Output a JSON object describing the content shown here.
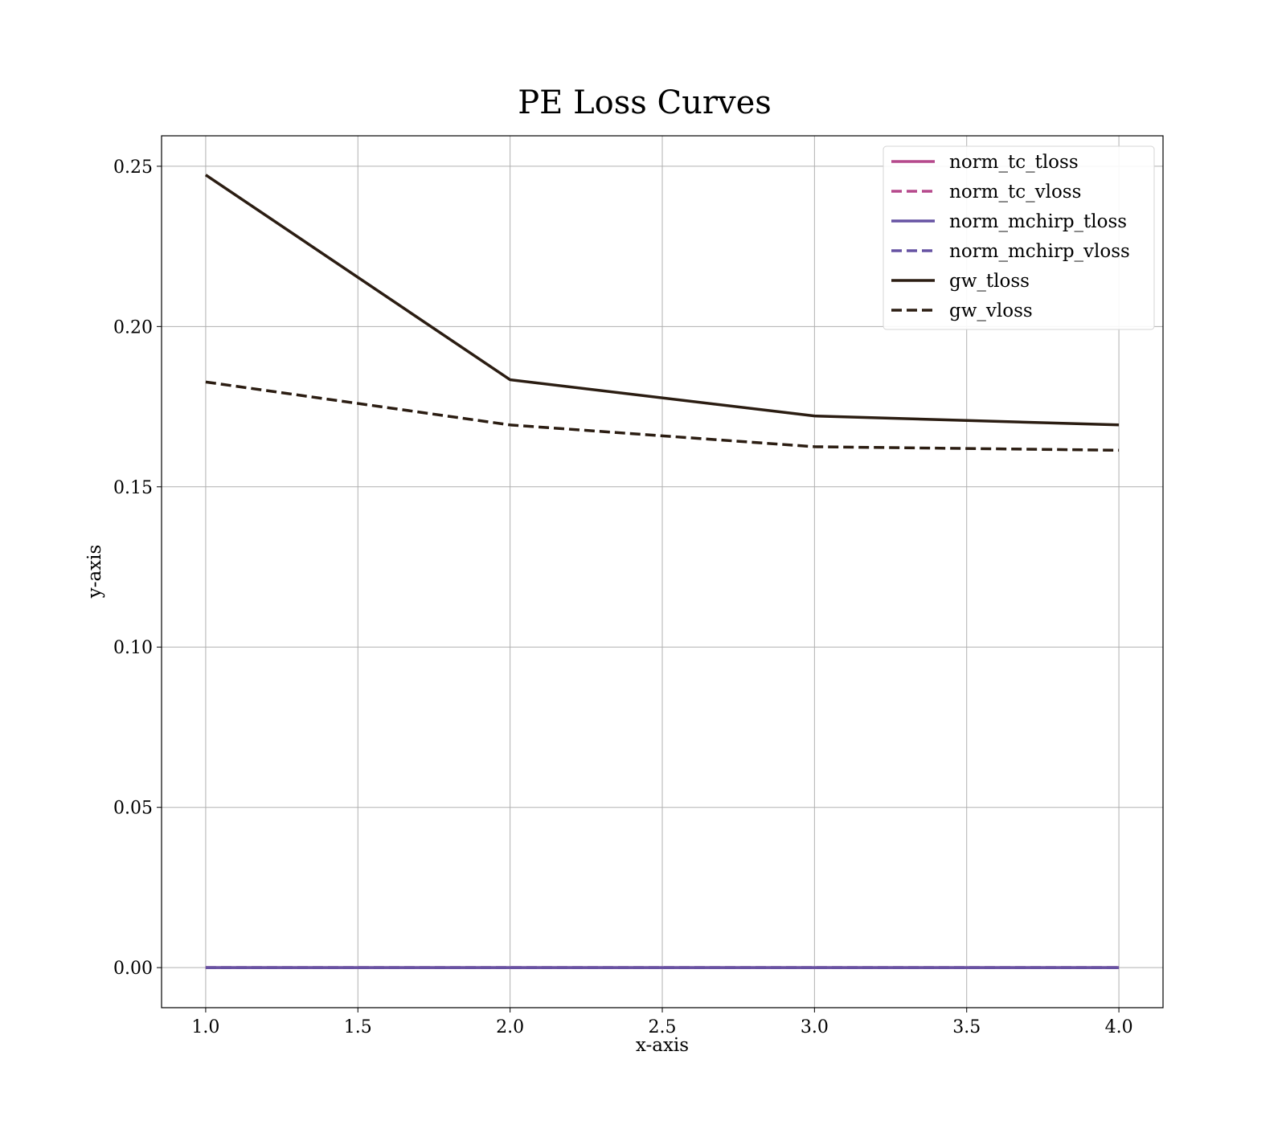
{
  "chart_data": {
    "type": "line",
    "title": "PE Loss Curves",
    "xlabel": "x-axis",
    "ylabel": "y-axis",
    "xlim": [
      0.855,
      4.145
    ],
    "ylim": [
      -0.0125,
      0.2595
    ],
    "xticks": [
      1.0,
      1.5,
      2.0,
      2.5,
      3.0,
      3.5,
      4.0
    ],
    "xtick_labels": [
      "1.0",
      "1.5",
      "2.0",
      "2.5",
      "3.0",
      "3.5",
      "4.0"
    ],
    "yticks": [
      0.0,
      0.05,
      0.1,
      0.15,
      0.2,
      0.25
    ],
    "ytick_labels": [
      "0.00",
      "0.05",
      "0.10",
      "0.15",
      "0.20",
      "0.25"
    ],
    "grid": true,
    "legend_position": "top-right",
    "x": [
      1,
      2,
      3,
      4
    ],
    "series": [
      {
        "name": "norm_tc_tloss",
        "values": [
          0.0,
          0.0,
          0.0,
          0.0
        ],
        "color": "#b5498c",
        "dash": "solid"
      },
      {
        "name": "norm_tc_vloss",
        "values": [
          0.0,
          0.0,
          0.0,
          0.0
        ],
        "color": "#b5498c",
        "dash": "dashed"
      },
      {
        "name": "norm_mchirp_tloss",
        "values": [
          0.0,
          0.0,
          0.0,
          0.0
        ],
        "color": "#6753a3",
        "dash": "solid"
      },
      {
        "name": "norm_mchirp_vloss",
        "values": [
          0.0,
          0.0,
          0.0,
          0.0
        ],
        "color": "#6753a3",
        "dash": "dashed"
      },
      {
        "name": "gw_tloss",
        "values": [
          0.2473,
          0.1834,
          0.1721,
          0.1693
        ],
        "color": "#2b1d12",
        "dash": "solid"
      },
      {
        "name": "gw_vloss",
        "values": [
          0.1827,
          0.1693,
          0.1625,
          0.1614
        ],
        "color": "#2b1d12",
        "dash": "dashed"
      }
    ]
  }
}
